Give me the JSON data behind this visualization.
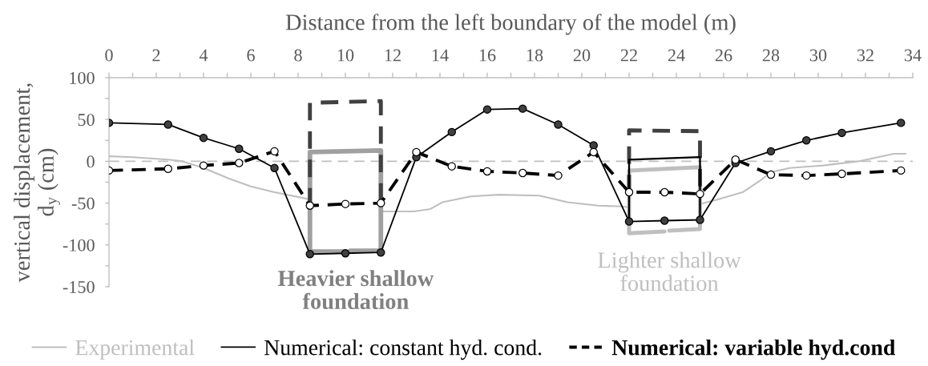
{
  "chart_data": {
    "type": "line",
    "xlabel": "Distance from the left boundary of the model (m)",
    "ylabel": "vertical displacement,\nd$_{y}$ (cm)",
    "xlim": [
      0,
      34
    ],
    "xticks": [
      0,
      {
        "value": 1,
        "label": null
      },
      2,
      {
        "value": 3,
        "label": null
      },
      4,
      {
        "value": 5,
        "label": null
      },
      6,
      {
        "value": 7,
        "label": null
      },
      8,
      {
        "value": 9,
        "label": null
      },
      10,
      {
        "value": 11,
        "label": null
      },
      12,
      {
        "value": 13,
        "label": null
      },
      14,
      {
        "value": 15,
        "label": null
      },
      16,
      {
        "value": 17,
        "label": null
      },
      18,
      {
        "value": 19,
        "label": null
      },
      20,
      {
        "value": 21,
        "label": null
      },
      22,
      {
        "value": 23,
        "label": null
      },
      24,
      {
        "value": 25,
        "label": null
      },
      26,
      {
        "value": 27,
        "label": null
      },
      28,
      {
        "value": 29,
        "label": null
      },
      30,
      {
        "value": 31,
        "label": null
      },
      32,
      {
        "value": 33,
        "label": null
      },
      34
    ],
    "ylim": [
      -150,
      100
    ],
    "yticks": [
      -150,
      {
        "value": -125,
        "label": null
      },
      -100,
      {
        "value": -75,
        "label": null
      },
      -50,
      {
        "value": -25,
        "label": null
      },
      0,
      {
        "value": 25,
        "label": null
      },
      50,
      {
        "value": 75,
        "label": null
      },
      100
    ],
    "ref_lines": [
      {
        "axis": "y",
        "value": 0,
        "color": "#bfbfbf",
        "line_style": "dashed"
      }
    ],
    "legend": "bottom",
    "series": [
      {
        "name": "Experimental",
        "color": "#bfbfbf",
        "line_style": "solid",
        "x": [
          0,
          1,
          2.5,
          3.1,
          4,
          5.1,
          6,
          7,
          8.4,
          8.5,
          10,
          11.5,
          12.9,
          13.6,
          14.1,
          15.3,
          16.5,
          18.2,
          19.4,
          20.7,
          21.7,
          22,
          23.5,
          25,
          25.7,
          26.8,
          27.5,
          28,
          28.8,
          30.2,
          31.7,
          33.2,
          33.7
        ],
        "values": [
          6,
          5,
          2,
          0,
          -8,
          -21,
          -30,
          -37,
          -45,
          -47,
          null,
          -60,
          -60,
          -57,
          -49,
          -42,
          -40,
          -41,
          -49,
          -53,
          -54,
          -55,
          null,
          -51,
          -46,
          -37,
          -24,
          -13,
          -8,
          -5,
          0,
          9,
          9
        ]
      },
      {
        "name": "Numerical: constant hyd. cond.",
        "color": "#000000",
        "line_style": "solid",
        "marker": "circle",
        "colors": [
          "#404040",
          "#404040",
          "#404040",
          "#404040",
          "#404040",
          "#404040",
          "#404040",
          "#404040",
          "#404040",
          "#404040",
          "#404040",
          "#404040",
          "#404040",
          "#404040",
          "#404040",
          "#404040",
          "#404040",
          "#404040",
          "#404040",
          "#404040",
          "#404040",
          "#404040"
        ],
        "x": [
          0,
          2.5,
          4,
          5.5,
          7,
          8.5,
          10,
          11.5,
          13,
          14.5,
          16,
          17.5,
          19,
          20.5,
          22,
          23.5,
          25,
          26.5,
          28,
          29.5,
          31,
          33.5
        ],
        "values": [
          46,
          44,
          28,
          15,
          -8,
          -111,
          -110,
          -109,
          5,
          35,
          62,
          63,
          44,
          19,
          -72,
          -71,
          -70,
          -2,
          12,
          25,
          34,
          46
        ]
      },
      {
        "name": "Numerical: variable hyd.cond",
        "color": "#000000",
        "line_style": "dashed",
        "marker": "circle",
        "colors": [
          "#ffffff",
          "#ffffff",
          "#ffffff",
          "#ffffff",
          "#ffffff",
          "#ffffff",
          "#ffffff",
          "#ffffff",
          "#ffffff",
          "#ffffff",
          "#ffffff",
          "#ffffff",
          "#ffffff",
          "#ffffff",
          "#ffffff",
          "#ffffff",
          "#ffffff",
          "#ffffff",
          "#ffffff",
          "#ffffff",
          "#ffffff",
          "#ffffff"
        ],
        "x": [
          0,
          2.5,
          4,
          5.5,
          7,
          8.5,
          10,
          11.5,
          13,
          14.5,
          16,
          17.5,
          19,
          20.5,
          22,
          23.5,
          25,
          26.5,
          28,
          29.5,
          31,
          33.5
        ],
        "values": [
          -11,
          -9,
          -5,
          -2,
          12,
          -53,
          -51,
          -50,
          11,
          -6,
          -12,
          -14,
          -17,
          11,
          -37,
          -37,
          -39,
          2,
          -16,
          -17,
          -15,
          -11
        ]
      },
      {
        "color": "#a0a0a0",
        "line_style": "solid",
        "x": [
          10,
          8.5,
          8.5,
          11.5,
          11.5,
          10.2
        ],
        "values": [
          -108,
          -108,
          11,
          13,
          -107,
          -107
        ]
      },
      {
        "color": "#404040",
        "line_style": "dashed",
        "x": [
          8.5,
          8.5,
          11.5,
          11.5
        ],
        "values": [
          -53,
          70,
          72,
          -50
        ]
      },
      {
        "color": "#404040",
        "line_style": "dashed",
        "x": [
          22,
          22,
          25,
          25
        ],
        "values": [
          -37,
          37,
          36,
          -39
        ]
      },
      {
        "color": "#bfbfbf",
        "line_style": "solid",
        "x": [
          23.5,
          22,
          22,
          25,
          25,
          23.7
        ],
        "values": [
          -84,
          -86,
          -11,
          -7,
          -81,
          -83
        ]
      },
      {
        "color": "#000000",
        "line_style": "solid",
        "x": [
          22,
          22,
          25,
          25
        ],
        "values": [
          -72,
          2,
          5,
          -70
        ]
      }
    ],
    "annotations": [
      "Heavier shallow\nfoundation",
      "Lighter shallow\nfoundation"
    ]
  }
}
